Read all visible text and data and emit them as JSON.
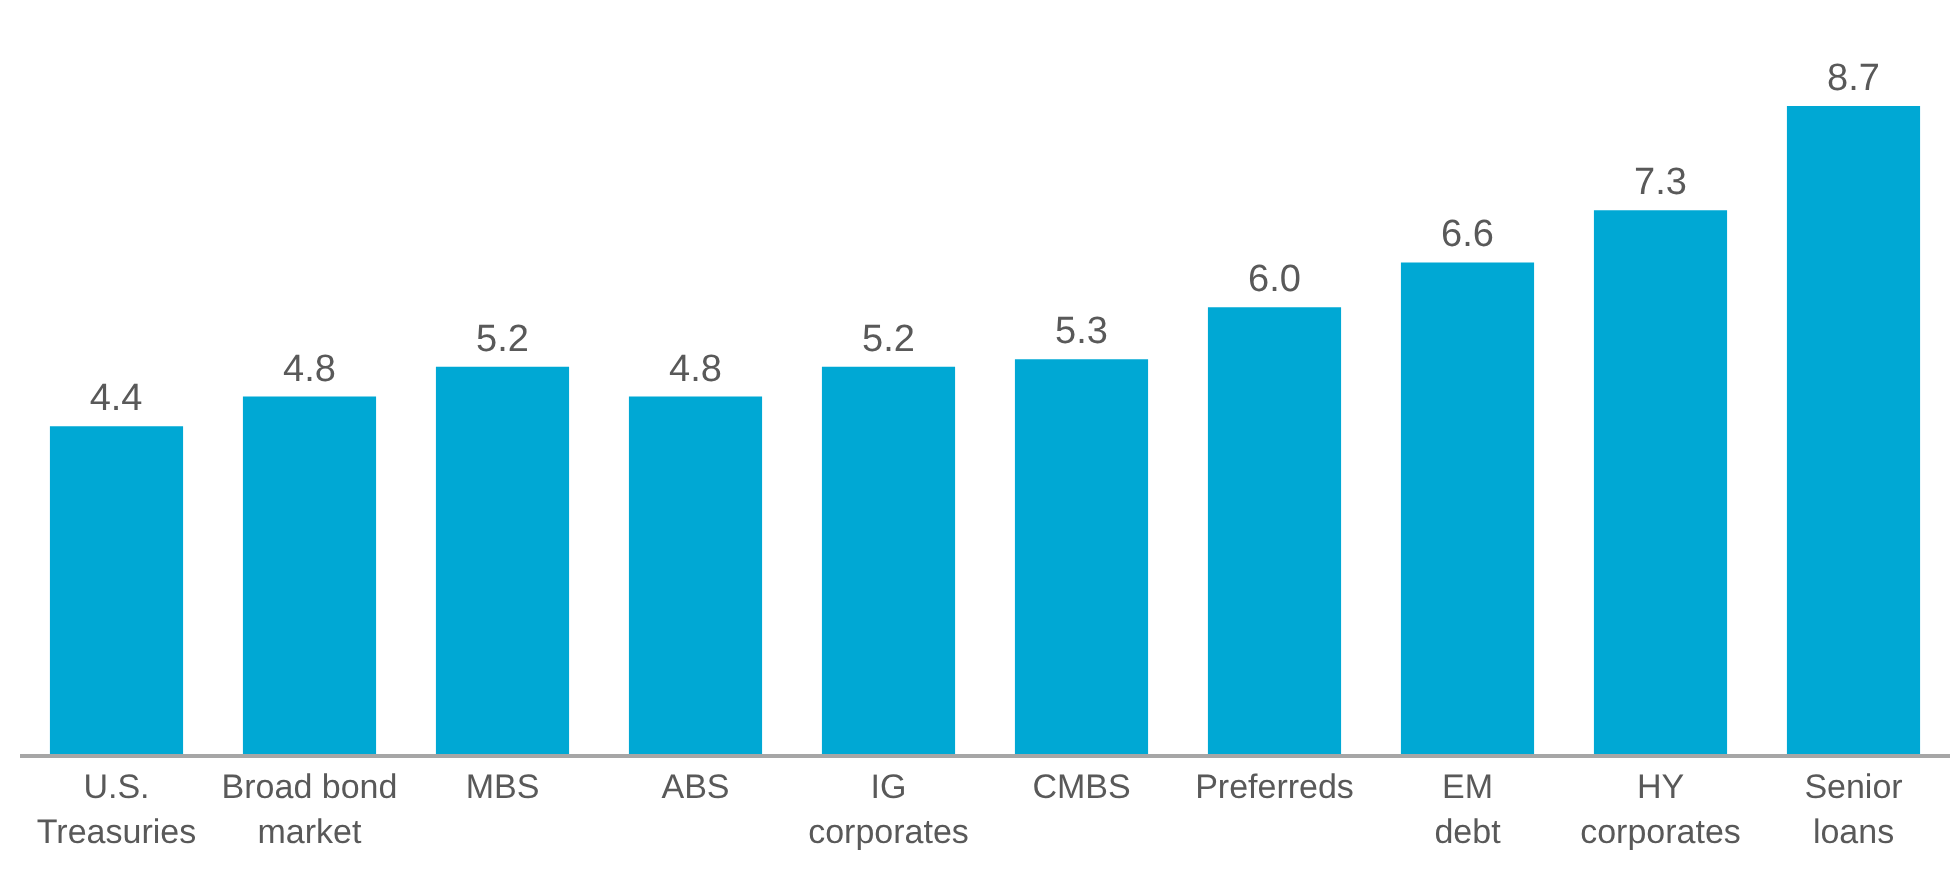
{
  "chart_data": {
    "type": "bar",
    "categories": [
      "U.S.\nTreasuries",
      "Broad bond\nmarket",
      "MBS",
      "ABS",
      "IG\ncorporates",
      "CMBS",
      "Preferreds",
      "EM\ndebt",
      "HY\ncorporates",
      "Senior\nloans"
    ],
    "values": [
      4.4,
      4.8,
      5.2,
      4.8,
      5.2,
      5.3,
      6.0,
      6.6,
      7.3,
      8.7
    ],
    "value_labels": [
      "4.4",
      "4.8",
      "5.2",
      "4.8",
      "5.2",
      "5.3",
      "6.0",
      "6.6",
      "7.3",
      "8.7"
    ],
    "color": "#00a8d4"
  }
}
